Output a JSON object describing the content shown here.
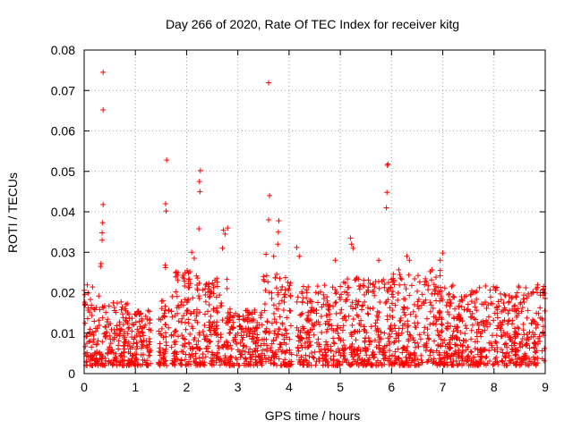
{
  "chart_data": {
    "type": "scatter",
    "title": "Day 266 of 2020, Rate Of TEC Index for receiver kitg",
    "xlabel": "GPS time / hours",
    "ylabel": "ROTI / TECUs",
    "xlim": [
      0,
      9
    ],
    "ylim": [
      0,
      0.08
    ],
    "grid": true,
    "marker": "+",
    "color": "#ff0000",
    "xticks": [
      "0",
      "1",
      "2",
      "3",
      "4",
      "5",
      "6",
      "7",
      "8",
      "9"
    ],
    "yticks": [
      "0",
      "0.01",
      "0.02",
      "0.03",
      "0.04",
      "0.05",
      "0.06",
      "0.07",
      "0.08"
    ],
    "series": [
      {
        "name": "ROTI",
        "points": [
          [
            0.37,
            0.0745
          ],
          [
            0.37,
            0.0652
          ],
          [
            0.37,
            0.0418
          ],
          [
            0.36,
            0.0373
          ],
          [
            0.35,
            0.0348
          ],
          [
            0.35,
            0.033
          ],
          [
            0.33,
            0.0272
          ],
          [
            0.32,
            0.0265
          ],
          [
            1.61,
            0.0528
          ],
          [
            1.59,
            0.042
          ],
          [
            1.6,
            0.0402
          ],
          [
            1.58,
            0.0268
          ],
          [
            1.59,
            0.0262
          ],
          [
            2.27,
            0.0502
          ],
          [
            2.25,
            0.0475
          ],
          [
            2.26,
            0.045
          ],
          [
            2.24,
            0.0358
          ],
          [
            2.1,
            0.03
          ],
          [
            2.15,
            0.0285
          ],
          [
            2.72,
            0.0355
          ],
          [
            2.75,
            0.0345
          ],
          [
            2.8,
            0.036
          ],
          [
            2.7,
            0.031
          ],
          [
            3.6,
            0.0719
          ],
          [
            3.62,
            0.044
          ],
          [
            3.6,
            0.038
          ],
          [
            3.8,
            0.0378
          ],
          [
            3.79,
            0.035
          ],
          [
            3.78,
            0.032
          ],
          [
            3.7,
            0.029
          ],
          [
            3.55,
            0.0295
          ],
          [
            4.15,
            0.0312
          ],
          [
            4.2,
            0.029
          ],
          [
            5.2,
            0.0335
          ],
          [
            5.22,
            0.032
          ],
          [
            5.25,
            0.031
          ],
          [
            4.9,
            0.028
          ],
          [
            5.93,
            0.0518
          ],
          [
            5.92,
            0.0515
          ],
          [
            5.91,
            0.0448
          ],
          [
            5.9,
            0.041
          ],
          [
            5.75,
            0.028
          ],
          [
            6.3,
            0.029
          ],
          [
            6.35,
            0.028
          ],
          [
            7.0,
            0.0298
          ],
          [
            6.95,
            0.028
          ]
        ],
        "dense_bands": [
          {
            "x_range": [
              0.0,
              0.35
            ],
            "y_range": [
              0.002,
              0.022
            ]
          },
          {
            "x_range": [
              0.35,
              0.85
            ],
            "y_range": [
              0.002,
              0.018
            ]
          },
          {
            "x_range": [
              0.85,
              1.3
            ],
            "y_range": [
              0.002,
              0.016
            ]
          },
          {
            "x_range": [
              1.45,
              1.65
            ],
            "y_range": [
              0.002,
              0.018
            ]
          },
          {
            "x_range": [
              1.7,
              2.2
            ],
            "y_range": [
              0.002,
              0.026
            ]
          },
          {
            "x_range": [
              2.2,
              2.8
            ],
            "y_range": [
              0.002,
              0.024
            ]
          },
          {
            "x_range": [
              2.8,
              3.5
            ],
            "y_range": [
              0.002,
              0.016
            ]
          },
          {
            "x_range": [
              3.5,
              4.05
            ],
            "y_range": [
              0.002,
              0.025
            ]
          },
          {
            "x_range": [
              4.15,
              5.0
            ],
            "y_range": [
              0.002,
              0.022
            ]
          },
          {
            "x_range": [
              5.0,
              6.0
            ],
            "y_range": [
              0.002,
              0.024
            ]
          },
          {
            "x_range": [
              6.0,
              7.0
            ],
            "y_range": [
              0.002,
              0.026
            ]
          },
          {
            "x_range": [
              7.0,
              8.0
            ],
            "y_range": [
              0.002,
              0.022
            ]
          },
          {
            "x_range": [
              8.0,
              9.0
            ],
            "y_range": [
              0.002,
              0.022
            ]
          }
        ]
      }
    ]
  }
}
